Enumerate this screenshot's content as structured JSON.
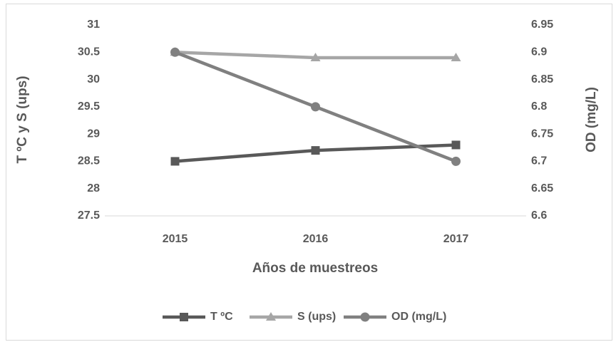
{
  "chart_data": {
    "type": "line",
    "categories": [
      "2015",
      "2016",
      "2017"
    ],
    "series": [
      {
        "name": "T ºC",
        "color": "#595959",
        "marker": "square",
        "values": [
          28.5,
          28.7,
          28.8
        ]
      },
      {
        "name": "S (ups)",
        "color": "#a6a6a6",
        "marker": "triangle",
        "values": [
          30.5,
          30.4,
          30.4
        ]
      },
      {
        "name": "OD (mg/L)",
        "color": "#808080",
        "marker": "circle",
        "axis": "y2",
        "values": [
          6.9,
          6.8,
          6.7
        ]
      }
    ],
    "ylim": [
      27.5,
      31
    ],
    "yticks": [
      27.5,
      28,
      28.5,
      29,
      29.5,
      30,
      30.5,
      31
    ],
    "y2lim": [
      6.6,
      6.95
    ],
    "y2ticks": [
      6.6,
      6.65,
      6.7,
      6.75,
      6.8,
      6.85,
      6.9,
      6.95
    ],
    "ylabel": "T ºC y S (ups)",
    "y2label": "OD (mg/L)",
    "xlabel": "Años de muestreos",
    "grid": false,
    "legend": "bottom"
  }
}
